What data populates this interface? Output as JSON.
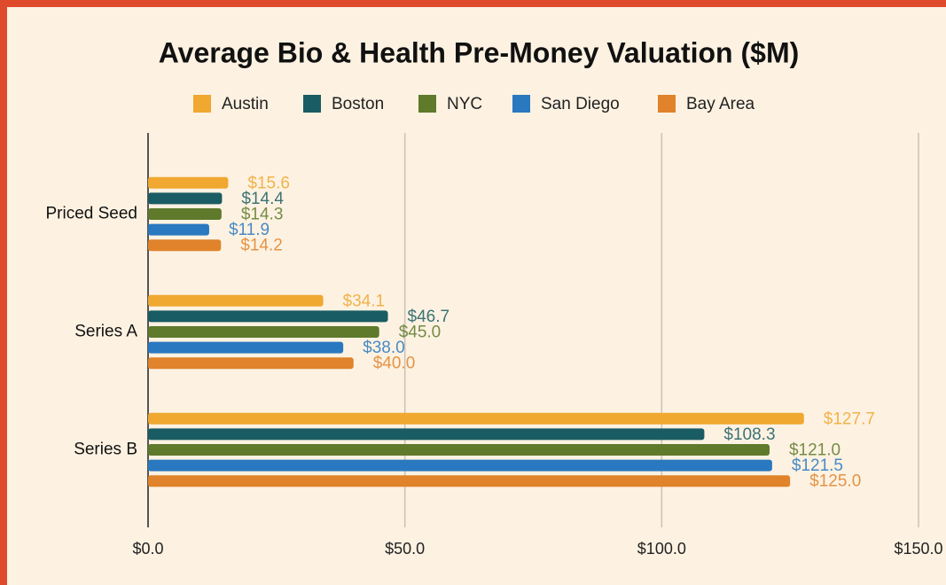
{
  "chart_data": {
    "type": "bar",
    "orientation": "horizontal",
    "title": "Average Bio & Health Pre-Money Valuation ($M)",
    "categories": [
      "Priced Seed",
      "Series A",
      "Series B"
    ],
    "series": [
      {
        "name": "Austin",
        "color": "#f0a830",
        "values": [
          15.6,
          34.1,
          127.7
        ],
        "value_labels": [
          "$15.6",
          "$34.1",
          "$127.7"
        ]
      },
      {
        "name": "Boston",
        "color": "#1a5c63",
        "values": [
          14.4,
          46.7,
          108.3
        ],
        "value_labels": [
          "$14.4",
          "$46.7",
          "$108.3"
        ]
      },
      {
        "name": "NYC",
        "color": "#5e7a2a",
        "values": [
          14.3,
          45.0,
          121.0
        ],
        "value_labels": [
          "$14.3",
          "$45.0",
          "$121.0"
        ]
      },
      {
        "name": "San Diego",
        "color": "#2a78c0",
        "values": [
          11.9,
          38.0,
          121.5
        ],
        "value_labels": [
          "$11.9",
          "$38.0",
          "$121.5"
        ]
      },
      {
        "name": "Bay Area",
        "color": "#e0832a",
        "values": [
          14.2,
          40.0,
          125.0
        ],
        "value_labels": [
          "$14.2",
          "$40.0",
          "$125.0"
        ]
      }
    ],
    "xlim": [
      0,
      150
    ],
    "xticks": [
      {
        "value": 0,
        "label": "$0.0"
      },
      {
        "value": 50,
        "label": "$50.0"
      },
      {
        "value": 100,
        "label": "$100.0"
      },
      {
        "value": 150,
        "label": "$150.0"
      }
    ],
    "grid": true,
    "legend": "top"
  }
}
